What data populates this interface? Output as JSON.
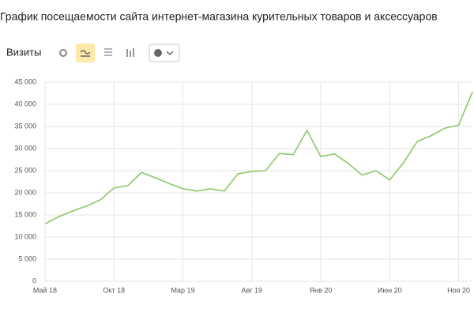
{
  "chart_data": {
    "type": "line",
    "title": "График посещаемости сайта интернет-магазина курительных товаров и аксессуаров",
    "metric_label": "Визиты",
    "categories": [
      "Май 18",
      null,
      null,
      null,
      null,
      "Окт 18",
      null,
      null,
      null,
      null,
      "Мар 19",
      null,
      null,
      null,
      null,
      "Авг 19",
      null,
      null,
      null,
      null,
      "Янв 20",
      null,
      null,
      null,
      null,
      "Июн 20",
      null,
      null,
      null,
      null,
      "Ноя 20",
      null
    ],
    "series": [
      {
        "name": "Визиты",
        "color": "#8bc76a",
        "values": [
          13000,
          14600,
          15900,
          17000,
          18400,
          21100,
          21600,
          24600,
          23400,
          22100,
          20900,
          20400,
          20900,
          20400,
          24300,
          24800,
          25000,
          28900,
          28600,
          34100,
          28200,
          28800,
          26600,
          24000,
          25000,
          22900,
          26800,
          31600,
          32900,
          34600,
          35300,
          42800
        ]
      }
    ],
    "ylim": [
      0,
      45000
    ],
    "yticks": [
      0,
      {
        "value": 5000,
        "label": "5 000"
      },
      {
        "value": 10000,
        "label": "10 000"
      },
      {
        "value": 15000,
        "label": "15 000"
      },
      {
        "value": 20000,
        "label": "20 000"
      },
      {
        "value": 25000,
        "label": "25 000"
      },
      {
        "value": 30000,
        "label": "30 000"
      },
      {
        "value": 35000,
        "label": "35 000"
      },
      {
        "value": 40000,
        "label": "40 000"
      },
      {
        "value": 45000,
        "label": "45 000"
      }
    ],
    "grid": true
  }
}
